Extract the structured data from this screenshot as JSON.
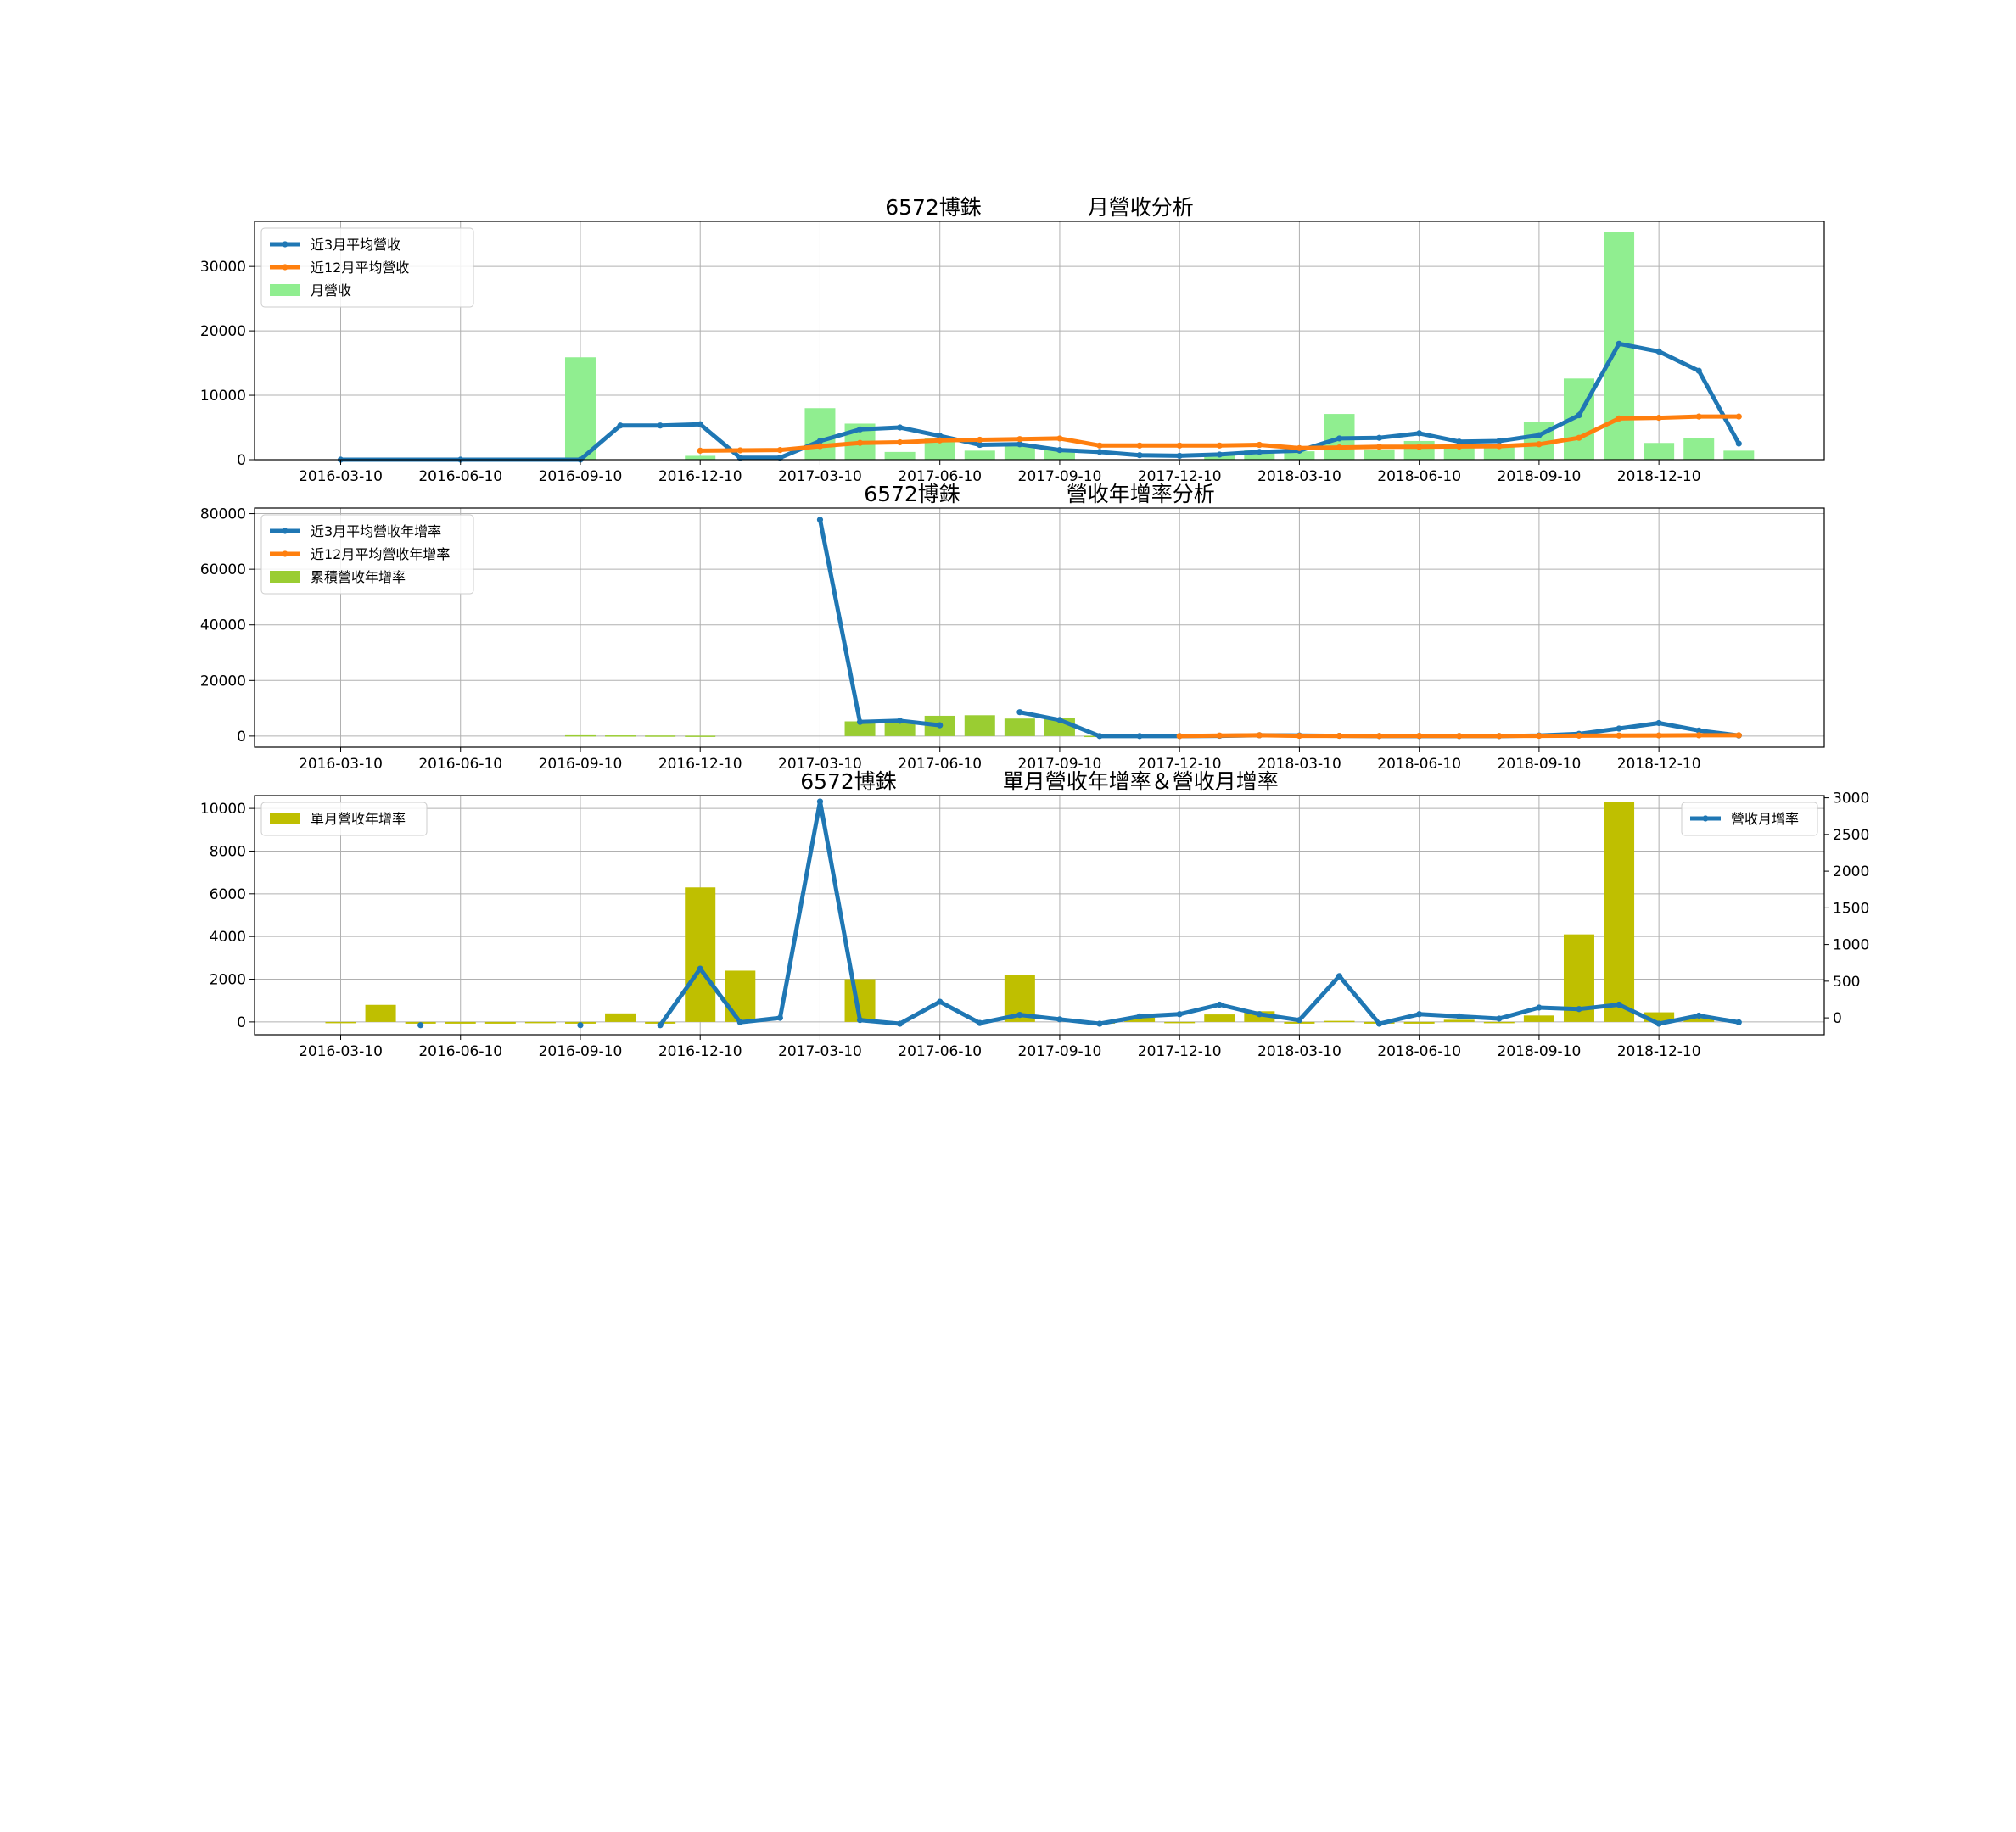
{
  "chart_data": [
    {
      "type": "bar",
      "title": "6572博銖　　　　　月營收分析",
      "ylim": [
        0,
        37000
      ],
      "yticks": [
        0,
        10000,
        20000,
        30000
      ],
      "x_tick_labels": [
        "2016-03-10",
        "2016-06-10",
        "2016-09-10",
        "2016-12-10",
        "2017-03-10",
        "2017-06-10",
        "2017-09-10",
        "2017-12-10",
        "2018-03-10",
        "2018-06-10",
        "2018-09-10",
        "2018-12-10"
      ],
      "grid": true,
      "legend_placement": "top-left",
      "series": [
        {
          "name": "近3月平均營收",
          "kind": "line",
          "color": "#1f77b4",
          "points": [
            [
              0,
              0
            ],
            [
              3,
              0
            ],
            [
              6,
              0
            ],
            [
              7,
              5300
            ],
            [
              8,
              5300
            ],
            [
              9,
              5500
            ],
            [
              10,
              300
            ],
            [
              11,
              300
            ],
            [
              12,
              2900
            ],
            [
              13,
              4700
            ],
            [
              14,
              5000
            ],
            [
              15,
              3700
            ],
            [
              16,
              2300
            ],
            [
              17,
              2400
            ],
            [
              18,
              1500
            ],
            [
              19,
              1200
            ],
            [
              20,
              700
            ],
            [
              21,
              600
            ],
            [
              22,
              800
            ],
            [
              23,
              1200
            ],
            [
              24,
              1400
            ],
            [
              25,
              3300
            ],
            [
              26,
              3400
            ],
            [
              27,
              4100
            ],
            [
              28,
              2800
            ],
            [
              29,
              2900
            ],
            [
              30,
              3800
            ],
            [
              31,
              6900
            ],
            [
              32,
              18000
            ],
            [
              33,
              16800
            ],
            [
              34,
              13800
            ],
            [
              35,
              2500
            ]
          ]
        },
        {
          "name": "近12月平均營收",
          "kind": "line",
          "color": "#ff7f0e",
          "points": [
            [
              9,
              1400
            ],
            [
              10,
              1450
            ],
            [
              11,
              1500
            ],
            [
              12,
              2100
            ],
            [
              13,
              2600
            ],
            [
              14,
              2700
            ],
            [
              15,
              3000
            ],
            [
              16,
              3100
            ],
            [
              17,
              3200
            ],
            [
              18,
              3300
            ],
            [
              19,
              2200
            ],
            [
              20,
              2200
            ],
            [
              21,
              2200
            ],
            [
              22,
              2200
            ],
            [
              23,
              2300
            ],
            [
              24,
              1800
            ],
            [
              25,
              1900
            ],
            [
              26,
              2000
            ],
            [
              27,
              2000
            ],
            [
              28,
              2050
            ],
            [
              29,
              2100
            ],
            [
              30,
              2400
            ],
            [
              31,
              3400
            ],
            [
              32,
              6400
            ],
            [
              33,
              6500
            ],
            [
              34,
              6700
            ],
            [
              35,
              6700
            ]
          ]
        },
        {
          "name": "月營收",
          "kind": "bar",
          "color": "#90ee90",
          "points": [
            [
              6,
              15900
            ],
            [
              9,
              600
            ],
            [
              12,
              8000
            ],
            [
              13,
              5600
            ],
            [
              14,
              1200
            ],
            [
              15,
              3400
            ],
            [
              16,
              1400
            ],
            [
              17,
              2300
            ],
            [
              18,
              1500
            ],
            [
              22,
              900
            ],
            [
              23,
              1500
            ],
            [
              24,
              1300
            ],
            [
              25,
              7100
            ],
            [
              26,
              1600
            ],
            [
              27,
              2900
            ],
            [
              28,
              2400
            ],
            [
              29,
              2300
            ],
            [
              30,
              5800
            ],
            [
              31,
              12600
            ],
            [
              32,
              35400
            ],
            [
              33,
              2600
            ],
            [
              34,
              3400
            ],
            [
              35,
              1400
            ]
          ]
        }
      ]
    },
    {
      "type": "bar",
      "title": "6572博銖　　　　　營收年增率分析",
      "ylim": [
        -4000,
        82000
      ],
      "yticks": [
        0,
        20000,
        40000,
        60000,
        80000
      ],
      "x_tick_labels": [
        "2016-03-10",
        "2016-06-10",
        "2016-09-10",
        "2016-12-10",
        "2017-03-10",
        "2017-06-10",
        "2017-09-10",
        "2017-12-10",
        "2018-03-10",
        "2018-06-10",
        "2018-09-10",
        "2018-12-10"
      ],
      "grid": true,
      "legend_placement": "top-left",
      "series": [
        {
          "name": "近3月平均營收年增率",
          "kind": "line",
          "color": "#1f77b4",
          "segments": [
            [
              [
                12,
                77800
              ],
              [
                13,
                5100
              ],
              [
                14,
                5500
              ],
              [
                15,
                3900
              ]
            ],
            [
              [
                17,
                8600
              ],
              [
                18,
                5800
              ],
              [
                19,
                0
              ],
              [
                20,
                0
              ],
              [
                21,
                0
              ],
              [
                22,
                100
              ],
              [
                23,
                300
              ],
              [
                24,
                200
              ],
              [
                25,
                100
              ],
              [
                26,
                0
              ],
              [
                27,
                0
              ],
              [
                28,
                0
              ],
              [
                29,
                0
              ],
              [
                30,
                200
              ],
              [
                31,
                800
              ],
              [
                32,
                2700
              ],
              [
                33,
                4700
              ],
              [
                34,
                2000
              ],
              [
                35,
                200
              ]
            ]
          ]
        },
        {
          "name": "近12月平均營收年增率",
          "kind": "line",
          "color": "#ff7f0e",
          "points": [
            [
              21,
              0
            ],
            [
              22,
              200
            ],
            [
              23,
              300
            ],
            [
              24,
              100
            ],
            [
              25,
              100
            ],
            [
              26,
              50
            ],
            [
              27,
              100
            ],
            [
              28,
              50
            ],
            [
              29,
              50
            ],
            [
              30,
              100
            ],
            [
              31,
              150
            ],
            [
              32,
              200
            ],
            [
              33,
              250
            ],
            [
              34,
              300
            ],
            [
              35,
              300
            ]
          ]
        },
        {
          "name": "累積營收年增率",
          "kind": "bar",
          "color": "#9acd32",
          "points": [
            [
              6,
              300
            ],
            [
              7,
              250
            ],
            [
              8,
              200
            ],
            [
              9,
              150
            ],
            [
              13,
              5300
            ],
            [
              14,
              5300
            ],
            [
              15,
              7300
            ],
            [
              16,
              7500
            ],
            [
              17,
              6300
            ],
            [
              18,
              6400
            ],
            [
              19,
              100
            ],
            [
              20,
              100
            ],
            [
              21,
              100
            ],
            [
              22,
              100
            ],
            [
              23,
              100
            ]
          ]
        }
      ]
    },
    {
      "type": "bar",
      "title": "6572博銖　　　　　單月營收年增率＆營收月增率",
      "ylim": [
        -600,
        10600
      ],
      "yticks": [
        0,
        2000,
        4000,
        6000,
        8000,
        10000
      ],
      "y2lim": [
        -230,
        3030
      ],
      "y2ticks": [
        0,
        500,
        1000,
        1500,
        2000,
        2500,
        3000
      ],
      "x_tick_labels": [
        "2016-03-10",
        "2016-06-10",
        "2016-09-10",
        "2016-12-10",
        "2017-03-10",
        "2017-06-10",
        "2017-09-10",
        "2017-12-10",
        "2018-03-10",
        "2018-06-10",
        "2018-09-10",
        "2018-12-10"
      ],
      "grid": true,
      "series": [
        {
          "name": "單月營收年增率",
          "kind": "bar",
          "color": "#bfbf00",
          "legend_placement": "top-left",
          "points": [
            [
              0,
              -50
            ],
            [
              1,
              800
            ],
            [
              2,
              -80
            ],
            [
              3,
              -80
            ],
            [
              4,
              -80
            ],
            [
              5,
              -30
            ],
            [
              6,
              -80
            ],
            [
              7,
              400
            ],
            [
              8,
              -80
            ],
            [
              9,
              6300
            ],
            [
              10,
              2400
            ],
            [
              13,
              2000
            ],
            [
              17,
              2200
            ],
            [
              19,
              -80
            ],
            [
              20,
              200
            ],
            [
              21,
              -50
            ],
            [
              22,
              350
            ],
            [
              23,
              500
            ],
            [
              24,
              -80
            ],
            [
              25,
              50
            ],
            [
              26,
              -80
            ],
            [
              27,
              -80
            ],
            [
              28,
              100
            ],
            [
              29,
              -30
            ],
            [
              30,
              300
            ],
            [
              31,
              4100
            ],
            [
              32,
              10300
            ],
            [
              33,
              450
            ],
            [
              34,
              200
            ]
          ]
        },
        {
          "name": "營收月增率",
          "kind": "line",
          "color": "#1f77b4",
          "axis": "right",
          "legend_placement": "top-right",
          "segments": [
            [
              [
                2,
                -100
              ]
            ],
            [
              [
                6,
                -100
              ]
            ],
            [
              [
                8,
                -100
              ],
              [
                9,
                670
              ],
              [
                10,
                -60
              ],
              [
                11,
                0
              ],
              [
                12,
                2950
              ],
              [
                13,
                -30
              ],
              [
                14,
                -80
              ],
              [
                15,
                220
              ],
              [
                16,
                -70
              ],
              [
                17,
                40
              ],
              [
                18,
                -20
              ],
              [
                19,
                -80
              ],
              [
                20,
                20
              ],
              [
                21,
                50
              ],
              [
                22,
                180
              ],
              [
                23,
                50
              ],
              [
                24,
                -30
              ],
              [
                25,
                570
              ],
              [
                26,
                -80
              ],
              [
                27,
                50
              ],
              [
                28,
                20
              ],
              [
                29,
                -10
              ],
              [
                30,
                140
              ],
              [
                31,
                120
              ],
              [
                32,
                180
              ],
              [
                33,
                -80
              ],
              [
                34,
                30
              ],
              [
                35,
                -60
              ]
            ]
          ]
        }
      ]
    }
  ]
}
